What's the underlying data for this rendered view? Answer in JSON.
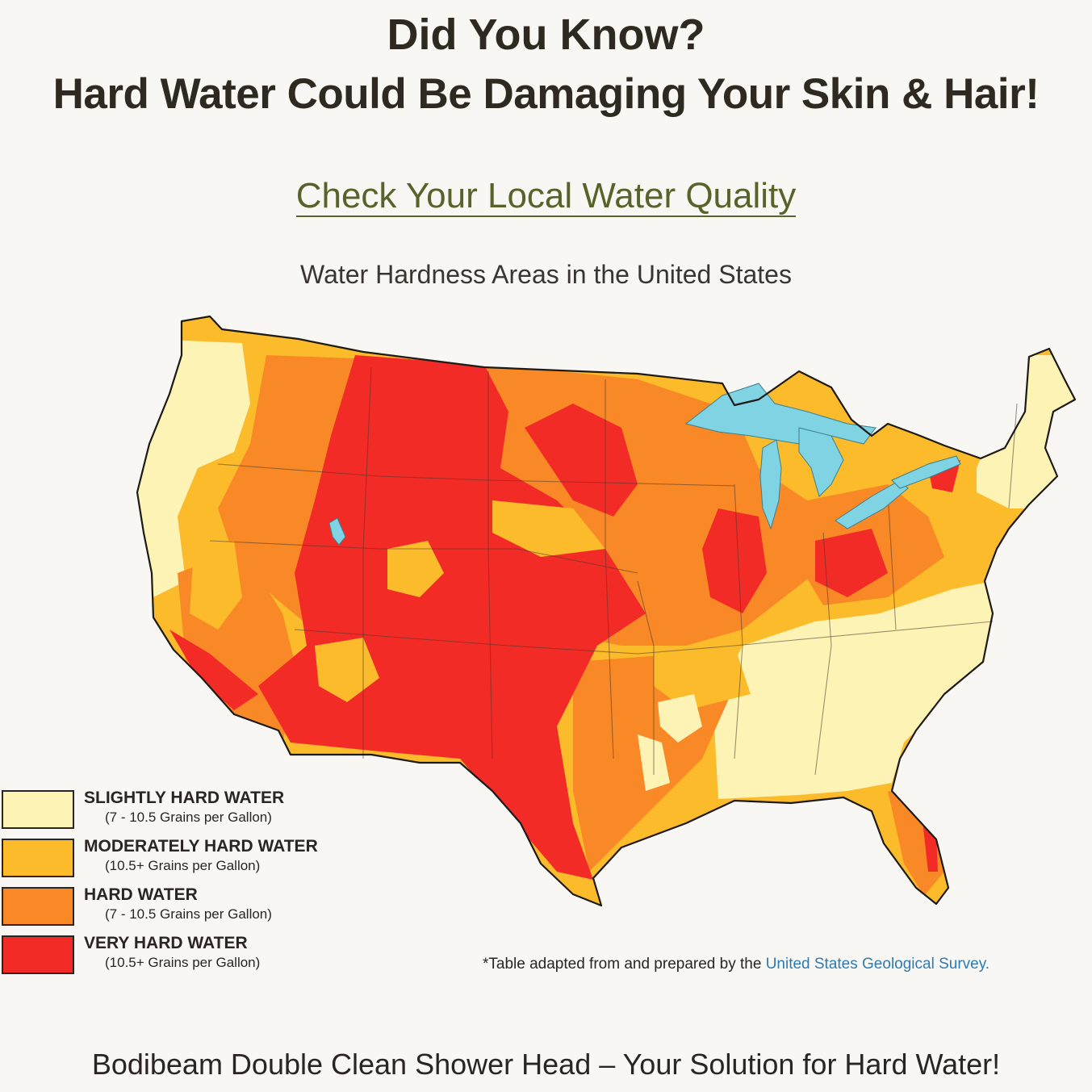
{
  "header": {
    "line1": "Did You Know?",
    "line2": "Hard Water Could Be Damaging Your Skin & Hair!"
  },
  "cta": {
    "label": "Check Your Local Water Quality"
  },
  "map": {
    "title": "Water Hardness Areas in the United States",
    "colors": {
      "slightly_hard": "#fdf3b4",
      "moderately_hard": "#fbbb2b",
      "hard": "#f98826",
      "very_hard": "#f22b26",
      "lakes": "#7fd3e2"
    }
  },
  "legend": [
    {
      "label": "SLIGHTLY HARD WATER",
      "range": "(7 - 10.5 Grains per Gallon)",
      "color": "#fdf3b4"
    },
    {
      "label": "MODERATELY HARD WATER",
      "range": "(10.5+ Grains per Gallon)",
      "color": "#fbbb2b"
    },
    {
      "label": "HARD WATER",
      "range": "(7 - 10.5 Grains per Gallon)",
      "color": "#f98826"
    },
    {
      "label": "VERY HARD WATER",
      "range": "(10.5+ Grains per Gallon)",
      "color": "#f22b26"
    }
  ],
  "footnote": {
    "text": "*Table adapted from and prepared by the ",
    "link": "United States Geological Survey."
  },
  "bottom": {
    "text": "Bodibeam Double Clean Shower Head – Your Solution for Hard Water!"
  }
}
